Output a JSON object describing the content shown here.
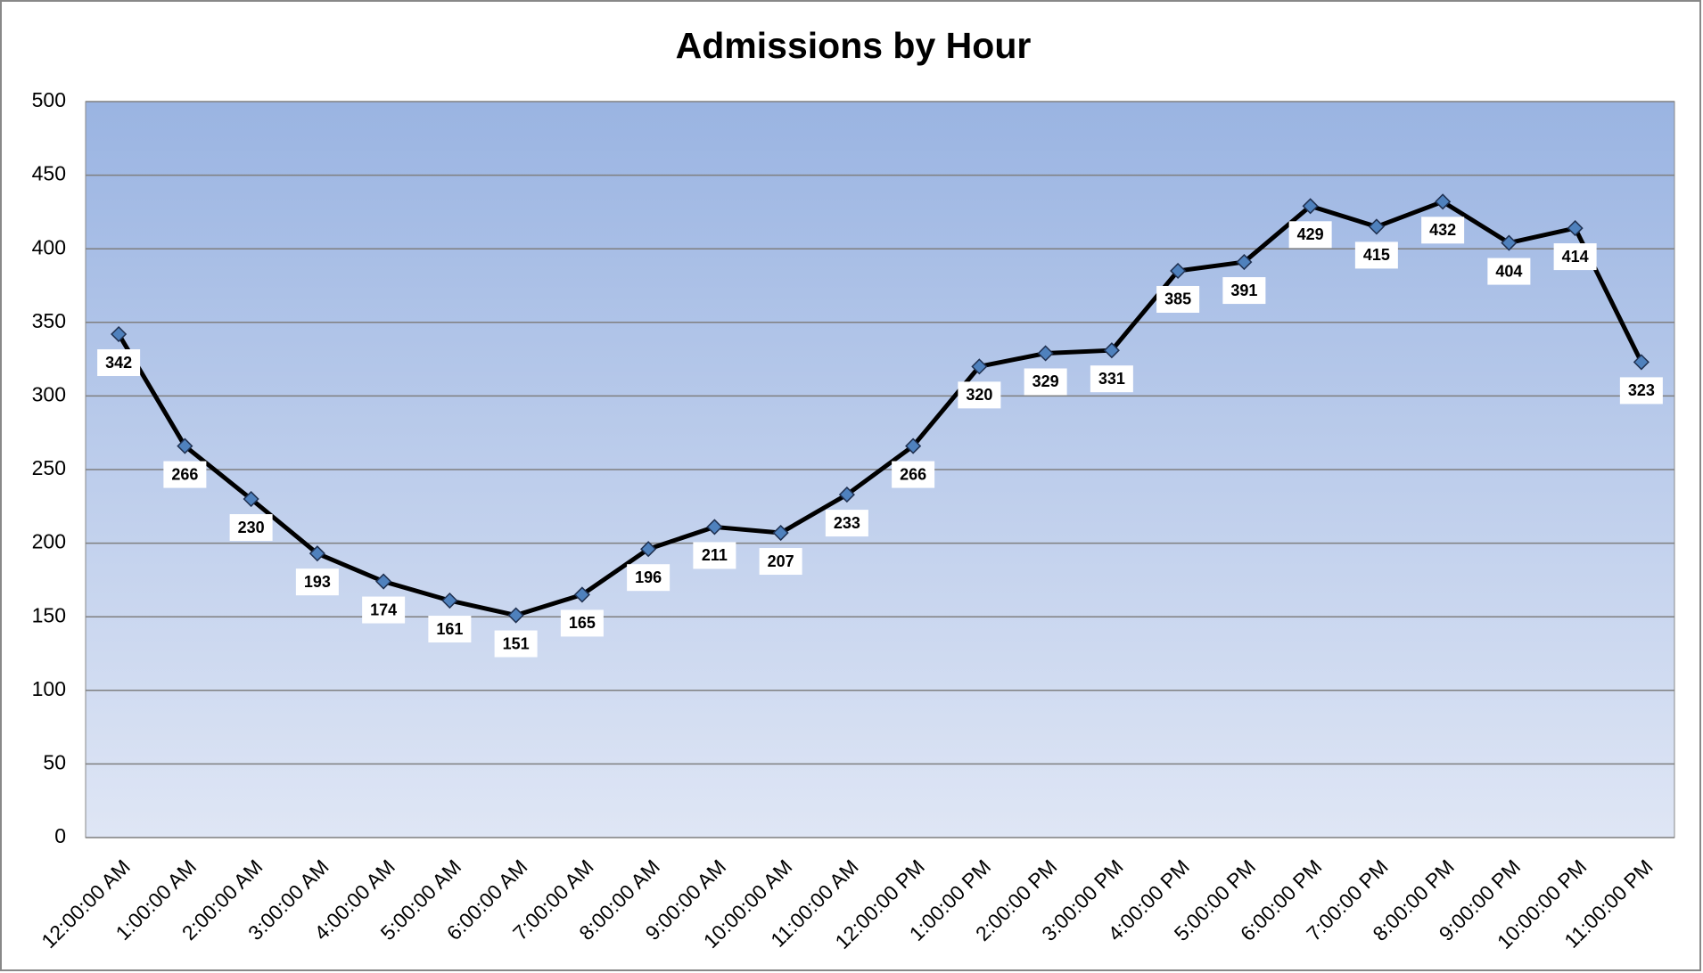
{
  "chart_data": {
    "type": "line",
    "title": "Admissions by Hour",
    "categories": [
      "12:00:00 AM",
      "1:00:00 AM",
      "2:00:00 AM",
      "3:00:00 AM",
      "4:00:00 AM",
      "5:00:00 AM",
      "6:00:00 AM",
      "7:00:00 AM",
      "8:00:00 AM",
      "9:00:00 AM",
      "10:00:00 AM",
      "11:00:00 AM",
      "12:00:00 PM",
      "1:00:00 PM",
      "2:00:00 PM",
      "3:00:00 PM",
      "4:00:00 PM",
      "5:00:00 PM",
      "6:00:00 PM",
      "7:00:00 PM",
      "8:00:00 PM",
      "9:00:00 PM",
      "10:00:00 PM",
      "11:00:00 PM"
    ],
    "values": [
      342,
      266,
      230,
      193,
      174,
      161,
      151,
      165,
      196,
      211,
      207,
      233,
      266,
      320,
      329,
      331,
      385,
      391,
      429,
      415,
      432,
      404,
      414,
      323
    ],
    "color": "#000000",
    "marker_color": "#4f81bd",
    "ylim": [
      0,
      500
    ],
    "yticks": [
      0,
      50,
      100,
      150,
      200,
      250,
      300,
      350,
      400,
      450,
      500
    ],
    "grid": true
  }
}
